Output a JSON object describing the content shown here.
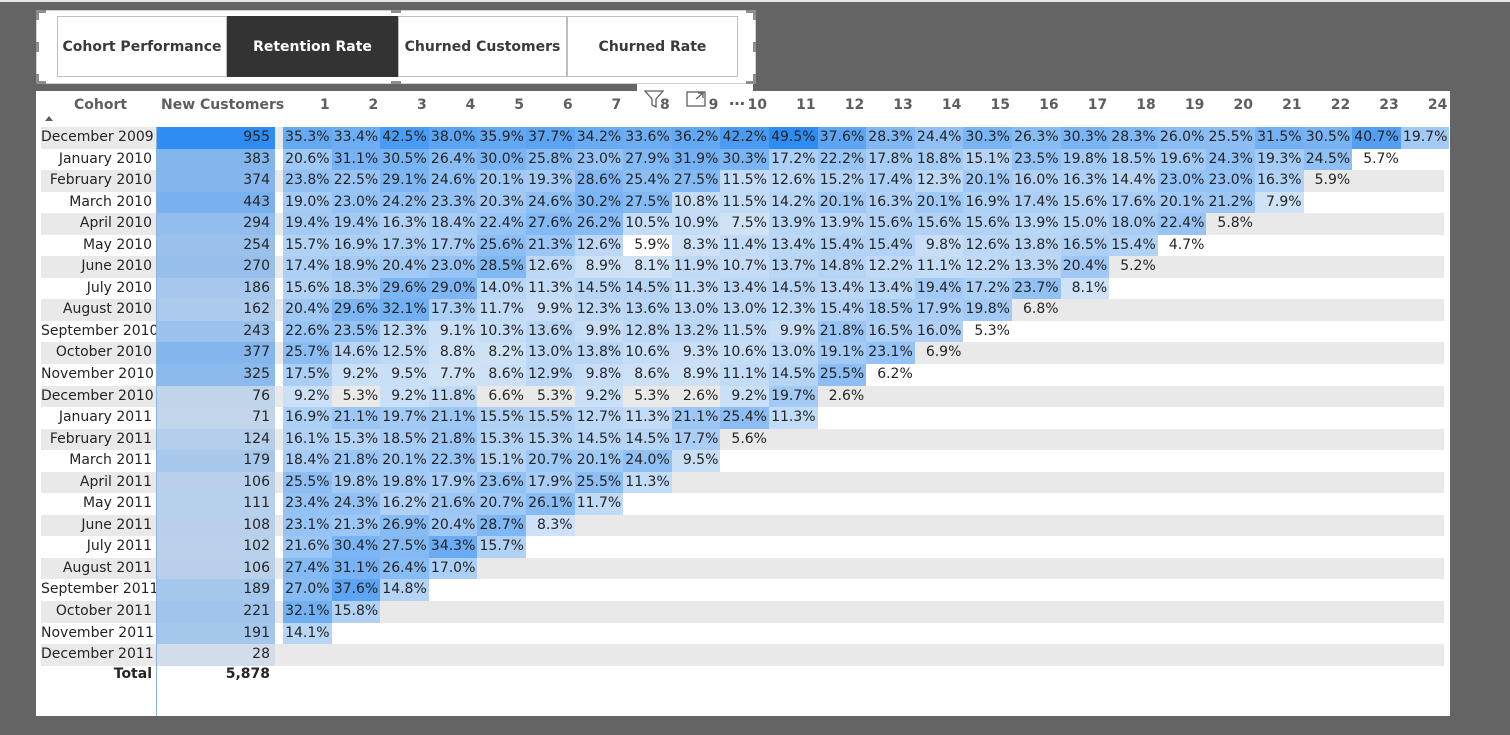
{
  "tabs": [
    {
      "label": "Cohort Performance",
      "selected": false
    },
    {
      "label": "Retention Rate",
      "selected": true
    },
    {
      "label": "Churned Customers",
      "selected": false
    },
    {
      "label": "Churned Rate",
      "selected": false
    }
  ],
  "visual_header": {
    "icons": [
      "filter-icon",
      "focus-mode-icon",
      "more-options-icon"
    ],
    "more_label": "…"
  },
  "colors": {
    "page_background": "#646464",
    "cell_color_low": "#cfe2f6",
    "cell_color_high": "#2f8cf2",
    "alt_row": "#e9e9e9",
    "selected_tab": "#333333"
  },
  "matrix": {
    "row_header": "Cohort",
    "new_customers_header": "New Customers",
    "period_headers": [
      "1",
      "2",
      "3",
      "4",
      "5",
      "6",
      "7",
      "8",
      "9",
      "10",
      "11",
      "12",
      "13",
      "14",
      "15",
      "16",
      "17",
      "18",
      "19",
      "20",
      "21",
      "22",
      "23",
      "24"
    ],
    "rows": [
      {
        "cohort": "December 2009",
        "new_customers": "955",
        "values": [
          "35.3%",
          "33.4%",
          "42.5%",
          "38.0%",
          "35.9%",
          "37.7%",
          "34.2%",
          "33.6%",
          "36.2%",
          "42.2%",
          "49.5%",
          "37.6%",
          "28.3%",
          "24.4%",
          "30.3%",
          "26.3%",
          "30.3%",
          "28.3%",
          "26.0%",
          "25.5%",
          "31.5%",
          "30.5%",
          "40.7%",
          "19.7%"
        ]
      },
      {
        "cohort": "January 2010",
        "new_customers": "383",
        "values": [
          "20.6%",
          "31.1%",
          "30.5%",
          "26.4%",
          "30.0%",
          "25.8%",
          "23.0%",
          "27.9%",
          "31.9%",
          "30.3%",
          "17.2%",
          "22.2%",
          "17.8%",
          "18.8%",
          "15.1%",
          "23.5%",
          "19.8%",
          "18.5%",
          "19.6%",
          "24.3%",
          "19.3%",
          "24.5%",
          "5.7%"
        ]
      },
      {
        "cohort": "February 2010",
        "new_customers": "374",
        "values": [
          "23.8%",
          "22.5%",
          "29.1%",
          "24.6%",
          "20.1%",
          "19.3%",
          "28.6%",
          "25.4%",
          "27.5%",
          "11.5%",
          "12.6%",
          "15.2%",
          "17.4%",
          "12.3%",
          "20.1%",
          "16.0%",
          "16.3%",
          "14.4%",
          "23.0%",
          "23.0%",
          "16.3%",
          "5.9%"
        ]
      },
      {
        "cohort": "March 2010",
        "new_customers": "443",
        "values": [
          "19.0%",
          "23.0%",
          "24.2%",
          "23.3%",
          "20.3%",
          "24.6%",
          "30.2%",
          "27.5%",
          "10.8%",
          "11.5%",
          "14.2%",
          "20.1%",
          "16.3%",
          "20.1%",
          "16.9%",
          "17.4%",
          "15.6%",
          "17.6%",
          "20.1%",
          "21.2%",
          "7.9%"
        ]
      },
      {
        "cohort": "April 2010",
        "new_customers": "294",
        "values": [
          "19.4%",
          "19.4%",
          "16.3%",
          "18.4%",
          "22.4%",
          "27.6%",
          "26.2%",
          "10.5%",
          "10.9%",
          "7.5%",
          "13.9%",
          "13.9%",
          "15.6%",
          "15.6%",
          "15.6%",
          "13.9%",
          "15.0%",
          "18.0%",
          "22.4%",
          "5.8%"
        ]
      },
      {
        "cohort": "May 2010",
        "new_customers": "254",
        "values": [
          "15.7%",
          "16.9%",
          "17.3%",
          "17.7%",
          "25.6%",
          "21.3%",
          "12.6%",
          "5.9%",
          "8.3%",
          "11.4%",
          "13.4%",
          "15.4%",
          "15.4%",
          "9.8%",
          "12.6%",
          "13.8%",
          "16.5%",
          "15.4%",
          "4.7%"
        ]
      },
      {
        "cohort": "June 2010",
        "new_customers": "270",
        "values": [
          "17.4%",
          "18.9%",
          "20.4%",
          "23.0%",
          "28.5%",
          "12.6%",
          "8.9%",
          "8.1%",
          "11.9%",
          "10.7%",
          "13.7%",
          "14.8%",
          "12.2%",
          "11.1%",
          "12.2%",
          "13.3%",
          "20.4%",
          "5.2%"
        ]
      },
      {
        "cohort": "July 2010",
        "new_customers": "186",
        "values": [
          "15.6%",
          "18.3%",
          "29.6%",
          "29.0%",
          "14.0%",
          "11.3%",
          "14.5%",
          "14.5%",
          "11.3%",
          "13.4%",
          "14.5%",
          "13.4%",
          "13.4%",
          "19.4%",
          "17.2%",
          "23.7%",
          "8.1%"
        ]
      },
      {
        "cohort": "August 2010",
        "new_customers": "162",
        "values": [
          "20.4%",
          "29.6%",
          "32.1%",
          "17.3%",
          "11.7%",
          "9.9%",
          "12.3%",
          "13.6%",
          "13.0%",
          "13.0%",
          "12.3%",
          "15.4%",
          "18.5%",
          "17.9%",
          "19.8%",
          "6.8%"
        ]
      },
      {
        "cohort": "September 2010",
        "new_customers": "243",
        "values": [
          "22.6%",
          "23.5%",
          "12.3%",
          "9.1%",
          "10.3%",
          "13.6%",
          "9.9%",
          "12.8%",
          "13.2%",
          "11.5%",
          "9.9%",
          "21.8%",
          "16.5%",
          "16.0%",
          "5.3%"
        ]
      },
      {
        "cohort": "October 2010",
        "new_customers": "377",
        "values": [
          "25.7%",
          "14.6%",
          "12.5%",
          "8.8%",
          "8.2%",
          "13.0%",
          "13.8%",
          "10.6%",
          "9.3%",
          "10.6%",
          "13.0%",
          "19.1%",
          "23.1%",
          "6.9%"
        ]
      },
      {
        "cohort": "November 2010",
        "new_customers": "325",
        "values": [
          "17.5%",
          "9.2%",
          "9.5%",
          "7.7%",
          "8.6%",
          "12.9%",
          "9.8%",
          "8.6%",
          "8.9%",
          "11.1%",
          "14.5%",
          "25.5%",
          "6.2%"
        ]
      },
      {
        "cohort": "December 2010",
        "new_customers": "76",
        "values": [
          "9.2%",
          "5.3%",
          "9.2%",
          "11.8%",
          "6.6%",
          "5.3%",
          "9.2%",
          "5.3%",
          "2.6%",
          "9.2%",
          "19.7%",
          "2.6%"
        ]
      },
      {
        "cohort": "January 2011",
        "new_customers": "71",
        "values": [
          "16.9%",
          "21.1%",
          "19.7%",
          "21.1%",
          "15.5%",
          "15.5%",
          "12.7%",
          "11.3%",
          "21.1%",
          "25.4%",
          "11.3%"
        ]
      },
      {
        "cohort": "February 2011",
        "new_customers": "124",
        "values": [
          "16.1%",
          "15.3%",
          "18.5%",
          "21.8%",
          "15.3%",
          "15.3%",
          "14.5%",
          "14.5%",
          "17.7%",
          "5.6%"
        ]
      },
      {
        "cohort": "March 2011",
        "new_customers": "179",
        "values": [
          "18.4%",
          "21.8%",
          "20.1%",
          "22.3%",
          "15.1%",
          "20.7%",
          "20.1%",
          "24.0%",
          "9.5%"
        ]
      },
      {
        "cohort": "April 2011",
        "new_customers": "106",
        "values": [
          "25.5%",
          "19.8%",
          "19.8%",
          "17.9%",
          "23.6%",
          "17.9%",
          "25.5%",
          "11.3%"
        ]
      },
      {
        "cohort": "May 2011",
        "new_customers": "111",
        "values": [
          "23.4%",
          "24.3%",
          "16.2%",
          "21.6%",
          "20.7%",
          "26.1%",
          "11.7%"
        ]
      },
      {
        "cohort": "June 2011",
        "new_customers": "108",
        "values": [
          "23.1%",
          "21.3%",
          "26.9%",
          "20.4%",
          "28.7%",
          "8.3%"
        ]
      },
      {
        "cohort": "July 2011",
        "new_customers": "102",
        "values": [
          "21.6%",
          "30.4%",
          "27.5%",
          "34.3%",
          "15.7%"
        ]
      },
      {
        "cohort": "August 2011",
        "new_customers": "106",
        "values": [
          "27.4%",
          "31.1%",
          "26.4%",
          "17.0%"
        ]
      },
      {
        "cohort": "September 2011",
        "new_customers": "189",
        "values": [
          "27.0%",
          "37.6%",
          "14.8%"
        ]
      },
      {
        "cohort": "October 2011",
        "new_customers": "221",
        "values": [
          "32.1%",
          "15.8%"
        ]
      },
      {
        "cohort": "November 2011",
        "new_customers": "191",
        "values": [
          "14.1%"
        ]
      },
      {
        "cohort": "December 2011",
        "new_customers": "28",
        "values": []
      }
    ],
    "total_label": "Total",
    "total_new_customers": "5,878"
  }
}
